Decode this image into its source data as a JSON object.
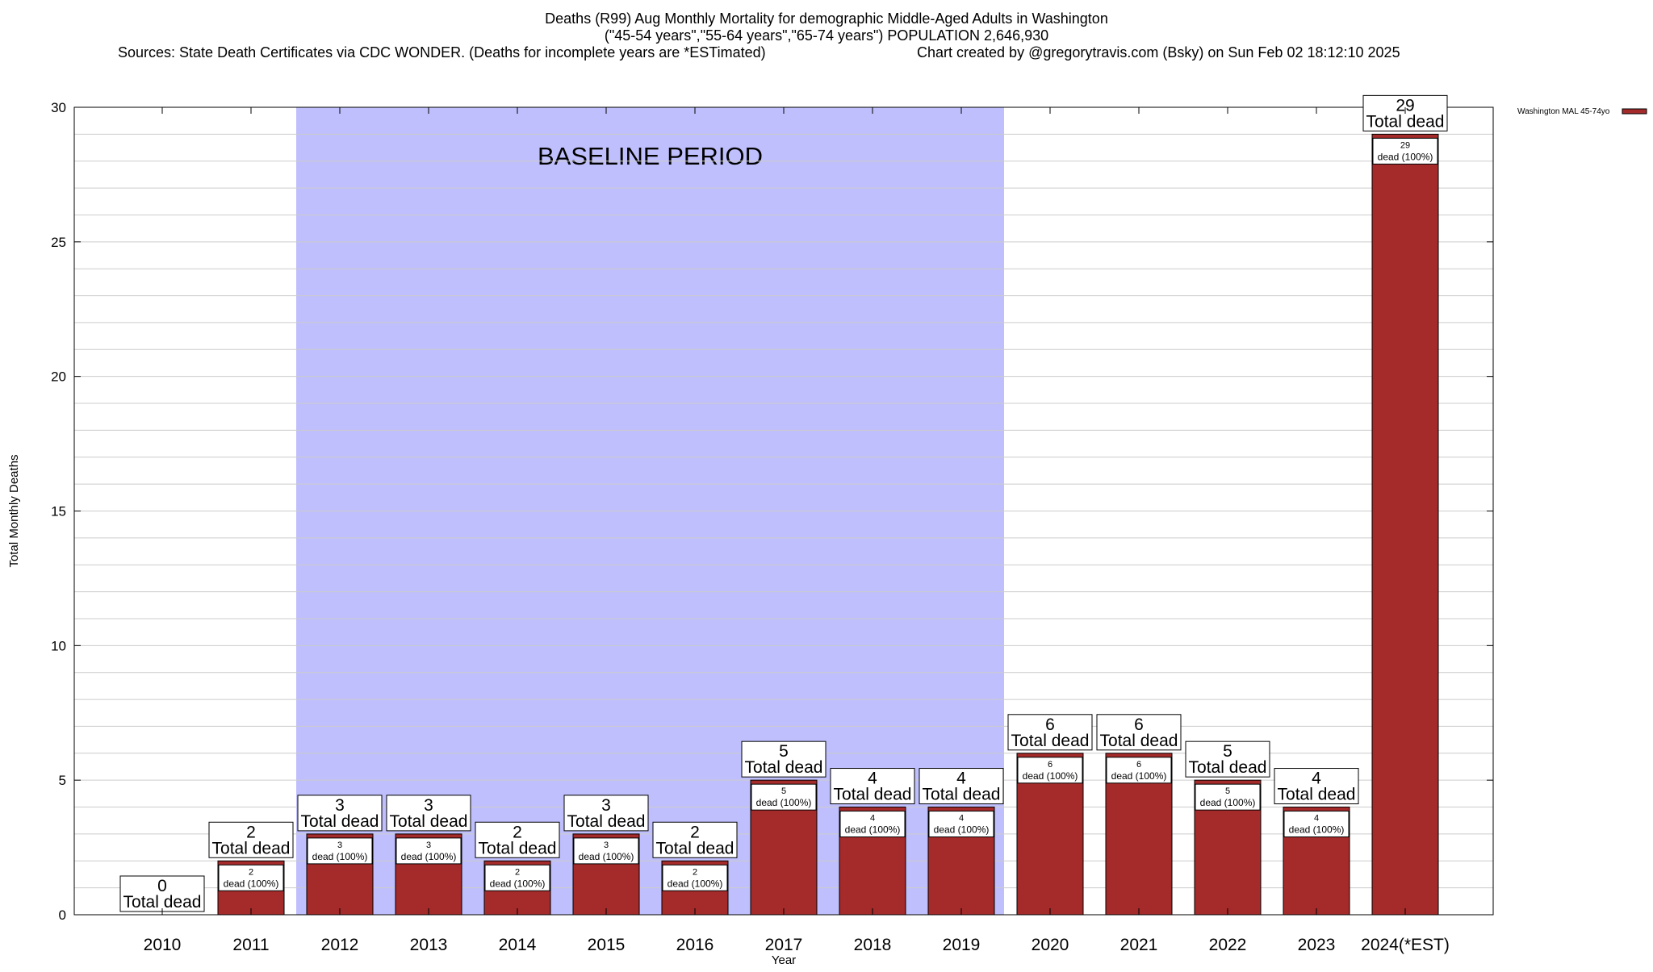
{
  "chart_data": {
    "type": "bar",
    "title_lines": [
      "Deaths (R99) Aug Monthly Mortality for demographic Middle-Aged Adults in Washington",
      "(\"45-54 years\",\"55-64 years\",\"65-74 years\") POPULATION 2,646,930"
    ],
    "sources": "Sources: State Death Certificates via CDC WONDER. (Deaths for incomplete years are *ESTimated)",
    "credit": "Chart created by @gregorytravis.com (Bsky) on Sun Feb 02 18:12:10 2025",
    "xlabel": "Year",
    "ylabel": "Total Monthly Deaths",
    "ylim": [
      0,
      30
    ],
    "yticks": [
      "0",
      "5",
      "10",
      "15",
      "20",
      "25",
      "30"
    ],
    "categories": [
      "2010",
      "2011",
      "2012",
      "2013",
      "2014",
      "2015",
      "2016",
      "2017",
      "2018",
      "2019",
      "2020",
      "2021",
      "2022",
      "2023",
      "2024(*EST)"
    ],
    "series": [
      {
        "name": "Washington MAL 45-74yo",
        "values": [
          0,
          2,
          3,
          3,
          2,
          3,
          2,
          5,
          4,
          4,
          6,
          6,
          5,
          4,
          29
        ]
      }
    ],
    "total_label": "Total dead",
    "inner_label_suffix": "dead (100%)",
    "baseline": {
      "label": "BASELINE PERIOD",
      "from_index": 2,
      "to_index": 9
    },
    "colors": {
      "bar": "#a52a2a",
      "baseline": "#bfbffd",
      "grid": "#cccccc"
    }
  }
}
